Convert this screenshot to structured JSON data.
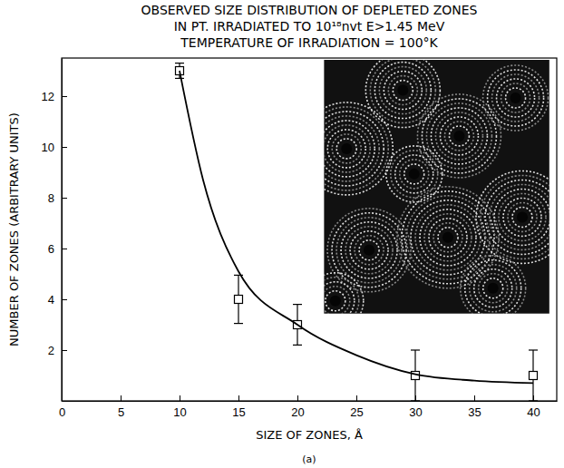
{
  "chart_data": {
    "type": "scatter",
    "title": [
      "OBSERVED SIZE DISTRIBUTION OF DEPLETED ZONES",
      "IN PT. IRRADIATED TO 10¹⁸nvt E>1.45 MeV",
      "TEMPERATURE OF IRRADIATION = 100°K"
    ],
    "x_label": "SIZE OF ZONES, Å",
    "y_label": "NUMBER OF ZONES (ARBITRARY UNITS)",
    "caption": "(a)",
    "xlim": [
      0,
      42
    ],
    "xticks": [
      0,
      5,
      10,
      15,
      20,
      25,
      30,
      35,
      40
    ],
    "ylim": [
      0,
      13.5
    ],
    "yticks": [
      2,
      4,
      6,
      8,
      10,
      12
    ],
    "grid": false,
    "color": "#000000",
    "series": [
      {
        "type": "scatter",
        "marker": "square",
        "x": [
          10,
          15,
          20,
          30,
          40
        ],
        "values": [
          13,
          4,
          3,
          1,
          1
        ],
        "errors": [
          0.3,
          0.95,
          0.8,
          1,
          1
        ]
      },
      {
        "type": "line",
        "line_style": "solid",
        "x": [
          10,
          12,
          15,
          20,
          25,
          30,
          35,
          40
        ],
        "values": [
          13,
          8.7,
          5.1,
          3.0,
          1.8,
          1.05,
          0.8,
          0.7
        ]
      }
    ]
  }
}
